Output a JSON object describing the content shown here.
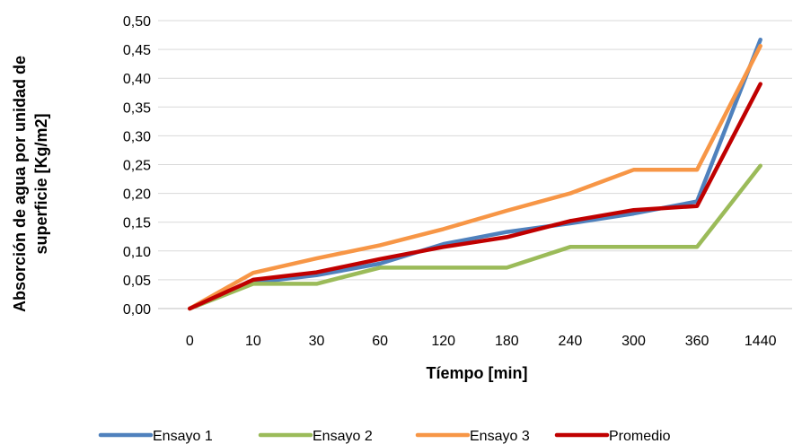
{
  "chart_data": {
    "type": "line",
    "xlabel": "Tíempo [min]",
    "ylabel_lines": [
      "Absorción de agua por unidad de",
      "superficie [Kg/m2]"
    ],
    "categories": [
      "0",
      "10",
      "30",
      "60",
      "120",
      "180",
      "240",
      "300",
      "360",
      "1440"
    ],
    "y_tick_labels": [
      "0,00",
      "0,05",
      "0,10",
      "0,15",
      "0,20",
      "0,25",
      "0,30",
      "0,35",
      "0,40",
      "0,45",
      "0,50"
    ],
    "ylim": [
      0,
      0.5
    ],
    "grid": true,
    "legend_position": "bottom",
    "series": [
      {
        "name": "Ensayo 1",
        "color": "#4F81BD",
        "values": [
          0.0,
          0.045,
          0.058,
          0.078,
          0.112,
          0.133,
          0.148,
          0.165,
          0.186,
          0.467
        ]
      },
      {
        "name": "Ensayo 2",
        "color": "#9BBB59",
        "values": [
          0.0,
          0.043,
          0.043,
          0.071,
          0.071,
          0.071,
          0.107,
          0.107,
          0.107,
          0.248
        ]
      },
      {
        "name": "Ensayo 3",
        "color": "#F79646",
        "values": [
          0.0,
          0.062,
          0.087,
          0.11,
          0.138,
          0.17,
          0.2,
          0.241,
          0.241,
          0.456
        ]
      },
      {
        "name": "Promedio",
        "color": "#C00000",
        "values": [
          0.0,
          0.05,
          0.063,
          0.086,
          0.107,
          0.124,
          0.152,
          0.171,
          0.178,
          0.39
        ]
      }
    ]
  }
}
